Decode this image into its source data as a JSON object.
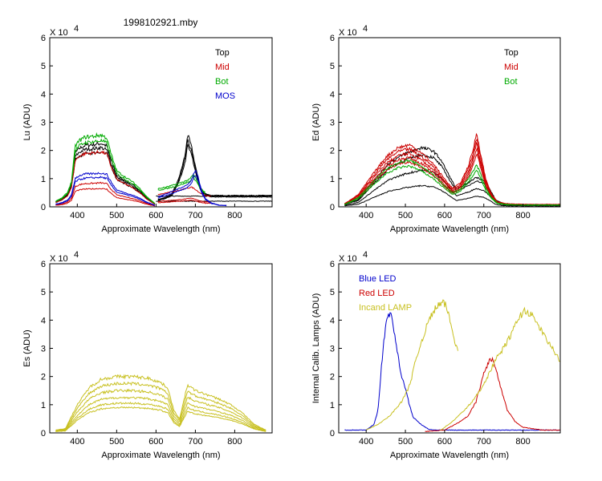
{
  "figure_title": "1998102921.mby",
  "chart_data": [
    {
      "id": "lu",
      "type": "line",
      "title": "1998102921.mby",
      "xlabel": "Approximate Wavelength (nm)",
      "ylabel": "Lu (ADU)",
      "y_multiplier": "X 10",
      "y_exponent": "4",
      "xlim": [
        330,
        895
      ],
      "ylim": [
        0,
        6
      ],
      "xticks": [
        400,
        500,
        600,
        700,
        800
      ],
      "yticks": [
        0,
        1,
        2,
        3,
        4,
        5,
        6
      ],
      "legend": [
        {
          "label": "Top",
          "color": "#000000"
        },
        {
          "label": "Mid",
          "color": "#cc0000"
        },
        {
          "label": "Bot",
          "color": "#00aa00"
        },
        {
          "label": "MOS",
          "color": "#0000cc"
        }
      ],
      "series": [
        {
          "name": "Top",
          "color": "#000000",
          "scales": [
            2.25,
            2.1,
            1.95
          ],
          "segments": [
            {
              "x": [
                345,
                360,
                375,
                385,
                395,
                405,
                420,
                440,
                460,
                475,
                485,
                500,
                520,
                540,
                560,
                575,
                590,
                598
              ],
              "shape": [
                0.08,
                0.12,
                0.2,
                0.35,
                0.85,
                0.92,
                0.97,
                0.98,
                1.0,
                0.96,
                0.75,
                0.5,
                0.42,
                0.35,
                0.25,
                0.15,
                0.08,
                0.04
              ]
            },
            {
              "x": [
                605,
                620,
                640,
                655,
                665,
                675,
                680,
                690,
                700,
                710,
                720,
                740,
                760,
                800,
                850,
                895
              ],
              "shape": [
                0.12,
                0.14,
                0.2,
                0.4,
                0.6,
                0.85,
                1.15,
                0.95,
                0.65,
                0.35,
                0.22,
                0.18,
                0.18,
                0.18,
                0.18,
                0.18
              ]
            }
          ]
        },
        {
          "name": "Top flat",
          "color": "#000000",
          "scales": [
            0.38,
            0.2
          ],
          "segments": [
            {
              "x": [
                600,
                700,
                800,
                895
              ],
              "shape": [
                1,
                1,
                1,
                1
              ]
            }
          ]
        },
        {
          "name": "Mid",
          "color": "#cc0000",
          "scales": [
            1.95,
            0.85,
            0.65
          ],
          "segments": [
            {
              "x": [
                345,
                360,
                375,
                385,
                395,
                405,
                420,
                440,
                460,
                475,
                485,
                500,
                520,
                540,
                560,
                575,
                590,
                598
              ],
              "shape": [
                0.08,
                0.12,
                0.2,
                0.35,
                0.85,
                0.92,
                0.97,
                0.98,
                1.0,
                0.96,
                0.75,
                0.5,
                0.42,
                0.35,
                0.25,
                0.15,
                0.08,
                0.04
              ]
            },
            {
              "x": [
                605,
                630,
                660,
                680,
                690,
                700,
                710,
                725,
                740
              ],
              "shape": [
                0.22,
                0.26,
                0.3,
                0.34,
                0.36,
                0.32,
                0.26,
                0.2,
                0.2
              ]
            }
          ]
        },
        {
          "name": "Bot",
          "color": "#00aa00",
          "scales": [
            2.55,
            2.35
          ],
          "segments": [
            {
              "x": [
                345,
                360,
                375,
                385,
                395,
                405,
                420,
                440,
                460,
                475,
                485,
                500,
                520,
                540,
                560,
                575,
                590,
                598
              ],
              "shape": [
                0.08,
                0.12,
                0.2,
                0.35,
                0.85,
                0.92,
                0.97,
                0.98,
                1.0,
                0.96,
                0.75,
                0.5,
                0.42,
                0.35,
                0.25,
                0.15,
                0.08,
                0.04
              ]
            },
            {
              "x": [
                605,
                630,
                655,
                670,
                685,
                695,
                705,
                715,
                725
              ],
              "shape": [
                0.25,
                0.28,
                0.32,
                0.35,
                0.38,
                0.45,
                0.36,
                0.25,
                0.2
              ]
            }
          ]
        },
        {
          "name": "MOS",
          "color": "#0000cc",
          "scales": [
            1.2,
            1.05
          ],
          "segments": [
            {
              "x": [
                345,
                360,
                375,
                385,
                395,
                405,
                420,
                440,
                460,
                475,
                485,
                500,
                520,
                540,
                560,
                575,
                590,
                598
              ],
              "shape": [
                0.08,
                0.12,
                0.2,
                0.35,
                0.85,
                0.92,
                0.97,
                0.98,
                1.0,
                0.96,
                0.75,
                0.5,
                0.42,
                0.35,
                0.25,
                0.15,
                0.08,
                0.04
              ]
            },
            {
              "x": [
                605,
                630,
                660,
                680,
                690,
                700,
                708,
                715,
                725,
                740,
                760,
                780
              ],
              "shape": [
                0.3,
                0.4,
                0.55,
                0.65,
                0.8,
                1.1,
                0.85,
                0.5,
                0.25,
                0.12,
                0.05,
                0.04
              ]
            }
          ]
        }
      ]
    },
    {
      "id": "ed",
      "type": "line",
      "title": "",
      "xlabel": "Approximate Wavelength (nm)",
      "ylabel": "Ed  (ADU)",
      "y_multiplier": "X 10",
      "y_exponent": "4",
      "xlim": [
        330,
        895
      ],
      "ylim": [
        0,
        6
      ],
      "xticks": [
        400,
        500,
        600,
        700,
        800
      ],
      "yticks": [
        0,
        1,
        2,
        3,
        4,
        5,
        6
      ],
      "legend": [
        {
          "label": "Top",
          "color": "#000000"
        },
        {
          "label": "Mid",
          "color": "#cc0000"
        },
        {
          "label": "Bot",
          "color": "#00aa00"
        }
      ],
      "series": [
        {
          "name": "Top",
          "color": "#000000",
          "scales": [
            2.1,
            1.85,
            1.3,
            0.75
          ],
          "segments": [
            {
              "x": [
                345,
                380,
                420,
                460,
                500,
                540,
                570,
                590,
                610,
                630,
                645,
                660,
                680,
                700,
                715,
                730,
                750,
                800,
                895
              ],
              "shape": [
                0.05,
                0.12,
                0.45,
                0.75,
                0.9,
                1.0,
                0.95,
                0.8,
                0.55,
                0.3,
                0.35,
                0.4,
                0.5,
                0.45,
                0.3,
                0.12,
                0.05,
                0.04,
                0.04
              ]
            }
          ]
        },
        {
          "name": "Mid",
          "color": "#cc0000",
          "scales": [
            2.2,
            2.05,
            1.9,
            1.75,
            1.6
          ],
          "segments": [
            {
              "x": [
                345,
                380,
                420,
                450,
                480,
                510,
                540,
                570,
                600,
                620,
                640,
                660,
                672,
                682,
                692,
                705,
                720,
                735,
                760,
                800,
                895
              ],
              "shape": [
                0.05,
                0.2,
                0.55,
                0.8,
                0.95,
                1.0,
                0.88,
                0.7,
                0.45,
                0.3,
                0.38,
                0.65,
                0.9,
                1.2,
                0.85,
                0.45,
                0.2,
                0.08,
                0.05,
                0.04,
                0.04
              ]
            }
          ]
        },
        {
          "name": "Bot",
          "color": "#00aa00",
          "scales": [
            1.65,
            1.45
          ],
          "segments": [
            {
              "x": [
                345,
                380,
                420,
                450,
                480,
                510,
                540,
                570,
                600,
                620,
                640,
                660,
                672,
                682,
                692,
                705,
                720,
                735,
                760,
                800,
                895
              ],
              "shape": [
                0.05,
                0.2,
                0.55,
                0.8,
                0.95,
                1.0,
                0.88,
                0.7,
                0.45,
                0.3,
                0.38,
                0.6,
                0.75,
                0.9,
                0.7,
                0.4,
                0.2,
                0.08,
                0.05,
                0.04,
                0.04
              ]
            }
          ]
        }
      ]
    },
    {
      "id": "es",
      "type": "line",
      "title": "",
      "xlabel": "Approximate Wavelength (nm)",
      "ylabel": "Es  (ADU)",
      "y_multiplier": "X 10",
      "y_exponent": "4",
      "xlim": [
        330,
        895
      ],
      "ylim": [
        0,
        6
      ],
      "xticks": [
        400,
        500,
        600,
        700,
        800
      ],
      "yticks": [
        0,
        1,
        2,
        3,
        4,
        5,
        6
      ],
      "legend": [],
      "series": [
        {
          "name": "Es",
          "color": "#c8c020",
          "scales": [
            2.0,
            1.75,
            1.5,
            1.25,
            1.05,
            0.9
          ],
          "segments": [
            {
              "x": [
                345,
                370,
                400,
                430,
                460,
                500,
                540,
                580,
                610,
                630,
                645,
                660,
                680,
                700,
                720,
                740,
                760,
                790,
                820,
                850,
                880
              ],
              "shape": [
                0.05,
                0.08,
                0.5,
                0.8,
                0.95,
                1.0,
                1.0,
                0.97,
                0.9,
                0.8,
                0.4,
                0.25,
                0.85,
                0.75,
                0.7,
                0.65,
                0.6,
                0.5,
                0.35,
                0.15,
                0.05
              ]
            }
          ]
        }
      ]
    },
    {
      "id": "cal",
      "type": "line",
      "title": "",
      "xlabel": "Approximate Wavelength (nm)",
      "ylabel": "Internal Calib. Lamps (ADU)",
      "y_multiplier": "X 10",
      "y_exponent": "4",
      "xlim": [
        330,
        895
      ],
      "ylim": [
        0,
        6
      ],
      "xticks": [
        400,
        500,
        600,
        700,
        800
      ],
      "yticks": [
        0,
        1,
        2,
        3,
        4,
        5,
        6
      ],
      "legend": [
        {
          "label": "Blue LED",
          "color": "#0000cc"
        },
        {
          "label": "Red LED",
          "color": "#cc0000"
        },
        {
          "label": "Incand LAMP",
          "color": "#c8c020"
        }
      ],
      "series": [
        {
          "name": "Blue LED",
          "color": "#0000cc",
          "scales": [
            1
          ],
          "segments": [
            {
              "x": [
                345,
                400,
                420,
                430,
                440,
                450,
                458,
                465,
                475,
                490,
                500,
                510,
                520,
                540,
                560,
                580,
                610,
                640,
                700,
                800,
                895
              ],
              "shape": [
                0.1,
                0.1,
                0.3,
                0.8,
                2.5,
                3.9,
                4.25,
                4.1,
                3.3,
                2.0,
                1.6,
                1.0,
                0.55,
                0.3,
                0.12,
                0.1,
                0.1,
                0.1,
                0.1,
                0.1,
                0.1
              ]
            }
          ]
        },
        {
          "name": "Red LED",
          "color": "#cc0000",
          "scales": [
            1
          ],
          "segments": [
            {
              "x": [
                550,
                600,
                640,
                660,
                680,
                700,
                715,
                722,
                730,
                745,
                760,
                780,
                800,
                850,
                895
              ],
              "shape": [
                0.05,
                0.1,
                0.4,
                0.6,
                1.1,
                2.1,
                2.6,
                2.6,
                2.3,
                1.5,
                0.8,
                0.4,
                0.2,
                0.1,
                0.1
              ]
            }
          ]
        },
        {
          "name": "Incand LAMP 1",
          "color": "#c8c020",
          "scales": [
            1
          ],
          "segments": [
            {
              "x": [
                400,
                430,
                460,
                490,
                505,
                515,
                525,
                540,
                560,
                580,
                595,
                605,
                615,
                625,
                635
              ],
              "shape": [
                0.1,
                0.3,
                0.6,
                1.1,
                1.5,
                1.9,
                2.5,
                3.2,
                4.0,
                4.5,
                4.6,
                4.5,
                3.9,
                3.3,
                2.9
              ]
            }
          ]
        },
        {
          "name": "Incand LAMP 2",
          "color": "#c8c020",
          "scales": [
            1
          ],
          "segments": [
            {
              "x": [
                590,
                620,
                650,
                670,
                690,
                710,
                730,
                750,
                770,
                790,
                805,
                820,
                840,
                860,
                880,
                895
              ],
              "shape": [
                0.1,
                0.4,
                0.8,
                1.1,
                1.5,
                2.0,
                2.6,
                3.0,
                3.5,
                4.1,
                4.35,
                4.2,
                3.8,
                3.3,
                2.9,
                2.5
              ]
            }
          ]
        }
      ]
    }
  ]
}
